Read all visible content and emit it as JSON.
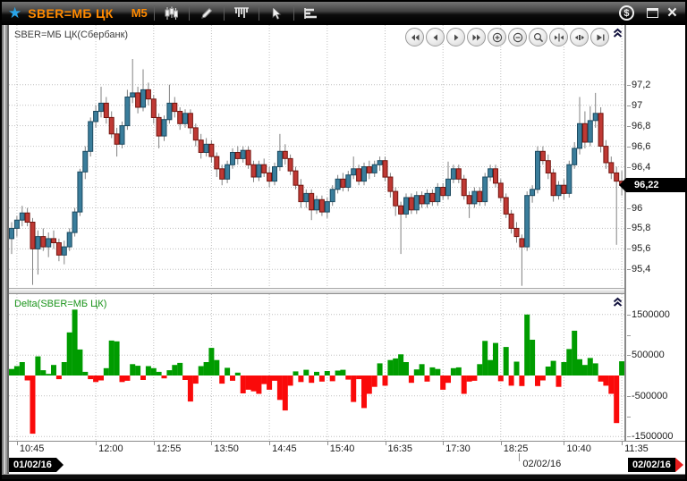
{
  "titlebar": {
    "title": "SBER=МБ ЦК",
    "timeframe": "М5",
    "star_color": "#2aa4e8",
    "tools": [
      "candle-chart-icon",
      "pencil-icon",
      "volume-profile-icon",
      "cursor-icon",
      "indicator-list-icon"
    ],
    "window_buttons": {
      "dollar_glyph": "$",
      "close_glyph": "×"
    }
  },
  "chart_panel": {
    "label": "SBER=МБ ЦК(Сбербанк)",
    "nav_buttons": [
      "scroll-left-fast",
      "scroll-left",
      "scroll-right",
      "scroll-right-fast",
      "zoom-in",
      "zoom-out",
      "zoom-area",
      "compress-horizontal",
      "expand-horizontal",
      "go-to-last"
    ],
    "last_price_label": "96,22"
  },
  "delta_panel": {
    "label": "Delta(SBER=МБ ЦК)"
  },
  "time_axis": {
    "date_left": "01/02/16",
    "date_mid": "02/02/16",
    "date_right": "02/02/16"
  },
  "colors": {
    "up_fill": "#3a7d9b",
    "up_border": "#1c4a60",
    "down_fill": "#bf3934",
    "down_border": "#73150f",
    "wick": "#828282",
    "grid": "#c0c0c0",
    "delta_up": "#009c00",
    "delta_down": "#fa0a0a",
    "accent_orange": "#ff8a00",
    "badge_bg": "#000000",
    "badge_arrow_red": "#e81c1c"
  },
  "chart_data": [
    {
      "type": "candlestick",
      "title": "SBER=МБ ЦК(Сбербанк)",
      "symbol": "SBER=МБ ЦК",
      "timeframe_minutes": 5,
      "ylim": [
        95.25,
        97.55
      ],
      "yticks": [
        {
          "v": 97.2,
          "label": "97,2"
        },
        {
          "v": 97.0,
          "label": "97"
        },
        {
          "v": 96.8,
          "label": "96,8"
        },
        {
          "v": 96.6,
          "label": "96,6"
        },
        {
          "v": 96.4,
          "label": "96,4"
        },
        {
          "v": 96.2,
          "label": "96,2"
        },
        {
          "v": 96.0,
          "label": "96"
        },
        {
          "v": 95.8,
          "label": "95,8"
        },
        {
          "v": 95.6,
          "label": "95,6"
        },
        {
          "v": 95.4,
          "label": "95,4"
        }
      ],
      "last_price": 96.22,
      "xticks": [
        {
          "label": "10:45",
          "index": 1
        },
        {
          "label": "12:00",
          "index": 16
        },
        {
          "label": "12:55",
          "index": 27
        },
        {
          "label": "13:50",
          "index": 38
        },
        {
          "label": "14:45",
          "index": 49
        },
        {
          "label": "15:40",
          "index": 60
        },
        {
          "label": "16:35",
          "index": 71
        },
        {
          "label": "17:30",
          "index": 82
        },
        {
          "label": "18:25",
          "index": 93
        },
        {
          "label": "10:40",
          "index": 105
        },
        {
          "label": "11:35",
          "index": 116
        }
      ],
      "day_separator_index": 97,
      "ohlc": [
        [
          95.7,
          95.86,
          95.55,
          95.8
        ],
        [
          95.8,
          95.92,
          95.72,
          95.88
        ],
        [
          95.88,
          96.02,
          95.82,
          95.95
        ],
        [
          95.95,
          96.0,
          95.82,
          95.86
        ],
        [
          95.86,
          95.9,
          95.25,
          95.6
        ],
        [
          95.6,
          95.78,
          95.35,
          95.72
        ],
        [
          95.72,
          95.8,
          95.58,
          95.62
        ],
        [
          95.62,
          95.76,
          95.52,
          95.7
        ],
        [
          95.7,
          95.78,
          95.6,
          95.66
        ],
        [
          95.66,
          95.7,
          95.48,
          95.54
        ],
        [
          95.54,
          95.68,
          95.45,
          95.62
        ],
        [
          95.62,
          95.8,
          95.58,
          95.76
        ],
        [
          95.76,
          96.0,
          95.72,
          95.96
        ],
        [
          95.96,
          96.38,
          95.92,
          96.35
        ],
        [
          96.35,
          96.6,
          96.28,
          96.55
        ],
        [
          96.55,
          96.88,
          96.5,
          96.84
        ],
        [
          96.84,
          97.0,
          96.78,
          96.94
        ],
        [
          96.94,
          97.18,
          96.88,
          97.02
        ],
        [
          97.02,
          97.08,
          96.82,
          96.88
        ],
        [
          96.88,
          96.94,
          96.68,
          96.72
        ],
        [
          96.72,
          96.78,
          96.5,
          96.62
        ],
        [
          96.62,
          96.84,
          96.58,
          96.8
        ],
        [
          96.8,
          97.15,
          96.76,
          97.08
        ],
        [
          97.08,
          97.45,
          97.02,
          97.12
        ],
        [
          97.12,
          97.18,
          96.92,
          96.98
        ],
        [
          96.98,
          97.35,
          96.94,
          97.15
        ],
        [
          97.15,
          97.22,
          97.0,
          97.06
        ],
        [
          97.06,
          97.1,
          96.82,
          96.88
        ],
        [
          96.88,
          96.92,
          96.58,
          96.7
        ],
        [
          96.7,
          96.9,
          96.65,
          96.86
        ],
        [
          96.86,
          97.2,
          96.82,
          97.02
        ],
        [
          97.02,
          97.08,
          96.88,
          96.94
        ],
        [
          96.94,
          96.98,
          96.76,
          96.82
        ],
        [
          96.82,
          96.96,
          96.78,
          96.92
        ],
        [
          96.92,
          96.96,
          96.72,
          96.78
        ],
        [
          96.78,
          96.82,
          96.6,
          96.66
        ],
        [
          96.66,
          96.72,
          96.48,
          96.54
        ],
        [
          96.54,
          96.68,
          96.5,
          96.62
        ],
        [
          96.62,
          96.66,
          96.44,
          96.5
        ],
        [
          96.5,
          96.54,
          96.3,
          96.38
        ],
        [
          96.38,
          96.42,
          96.22,
          96.28
        ],
        [
          96.28,
          96.46,
          96.24,
          96.42
        ],
        [
          96.42,
          96.58,
          96.38,
          96.54
        ],
        [
          96.54,
          96.6,
          96.42,
          96.48
        ],
        [
          96.48,
          96.6,
          96.44,
          96.56
        ],
        [
          96.56,
          96.6,
          96.38,
          96.42
        ],
        [
          96.42,
          96.46,
          96.25,
          96.3
        ],
        [
          96.3,
          96.46,
          96.26,
          96.42
        ],
        [
          96.42,
          96.48,
          96.3,
          96.34
        ],
        [
          96.34,
          96.4,
          96.2,
          96.26
        ],
        [
          96.26,
          96.44,
          96.22,
          96.4
        ],
        [
          96.4,
          96.72,
          96.36,
          96.55
        ],
        [
          96.55,
          96.62,
          96.42,
          96.48
        ],
        [
          96.48,
          96.52,
          96.32,
          96.36
        ],
        [
          96.36,
          96.4,
          96.18,
          96.22
        ],
        [
          96.22,
          96.28,
          96.0,
          96.06
        ],
        [
          96.06,
          96.18,
          96.0,
          96.14
        ],
        [
          96.14,
          96.18,
          95.88,
          95.98
        ],
        [
          95.98,
          96.12,
          95.94,
          96.08
        ],
        [
          96.08,
          96.12,
          95.92,
          95.96
        ],
        [
          95.96,
          96.1,
          95.9,
          96.06
        ],
        [
          96.06,
          96.22,
          96.02,
          96.18
        ],
        [
          96.18,
          96.32,
          96.14,
          96.28
        ],
        [
          96.28,
          96.34,
          96.16,
          96.2
        ],
        [
          96.2,
          96.36,
          96.16,
          96.32
        ],
        [
          96.32,
          96.5,
          96.28,
          96.38
        ],
        [
          96.38,
          96.42,
          96.22,
          96.26
        ],
        [
          96.26,
          96.44,
          96.22,
          96.4
        ],
        [
          96.4,
          96.46,
          96.28,
          96.34
        ],
        [
          96.34,
          96.46,
          96.3,
          96.42
        ],
        [
          96.42,
          96.5,
          96.36,
          96.46
        ],
        [
          96.46,
          96.5,
          96.26,
          96.3
        ],
        [
          96.3,
          96.34,
          96.1,
          96.16
        ],
        [
          96.16,
          96.2,
          95.92,
          96.02
        ],
        [
          96.02,
          96.06,
          95.55,
          95.94
        ],
        [
          95.94,
          96.14,
          95.9,
          96.1
        ],
        [
          96.1,
          96.14,
          95.94,
          95.98
        ],
        [
          95.98,
          96.16,
          95.94,
          96.12
        ],
        [
          96.12,
          96.16,
          96.0,
          96.04
        ],
        [
          96.04,
          96.18,
          96.0,
          96.14
        ],
        [
          96.14,
          96.18,
          96.02,
          96.06
        ],
        [
          96.06,
          96.24,
          96.02,
          96.2
        ],
        [
          96.2,
          96.24,
          96.08,
          96.12
        ],
        [
          96.12,
          96.45,
          96.08,
          96.28
        ],
        [
          96.28,
          96.42,
          96.24,
          96.38
        ],
        [
          96.38,
          96.42,
          96.24,
          96.28
        ],
        [
          96.28,
          96.32,
          96.08,
          96.12
        ],
        [
          96.12,
          96.16,
          95.9,
          96.04
        ],
        [
          96.04,
          96.2,
          96.0,
          96.16
        ],
        [
          96.16,
          96.2,
          96.02,
          96.06
        ],
        [
          96.06,
          96.34,
          96.02,
          96.3
        ],
        [
          96.3,
          96.42,
          96.26,
          96.38
        ],
        [
          96.38,
          96.42,
          96.2,
          96.24
        ],
        [
          96.24,
          96.28,
          96.06,
          96.1
        ],
        [
          96.1,
          96.14,
          95.9,
          95.94
        ],
        [
          95.94,
          95.98,
          95.75,
          95.8
        ],
        [
          95.8,
          95.86,
          95.66,
          95.72
        ],
        [
          95.7,
          95.74,
          95.24,
          95.62
        ],
        [
          95.62,
          96.16,
          95.58,
          96.12
        ],
        [
          96.12,
          96.22,
          96.05,
          96.18
        ],
        [
          96.18,
          96.6,
          96.14,
          96.55
        ],
        [
          96.55,
          96.6,
          96.42,
          96.46
        ],
        [
          96.46,
          96.52,
          96.28,
          96.34
        ],
        [
          96.34,
          96.38,
          96.06,
          96.12
        ],
        [
          96.12,
          96.26,
          96.08,
          96.22
        ],
        [
          96.22,
          96.28,
          96.08,
          96.14
        ],
        [
          96.14,
          96.46,
          96.1,
          96.42
        ],
        [
          96.42,
          96.64,
          96.38,
          96.58
        ],
        [
          96.58,
          97.08,
          96.52,
          96.82
        ],
        [
          96.82,
          96.94,
          96.58,
          96.64
        ],
        [
          96.64,
          96.99,
          96.6,
          96.85
        ],
        [
          96.85,
          97.12,
          96.78,
          96.92
        ],
        [
          96.92,
          96.98,
          96.54,
          96.6
        ],
        [
          96.6,
          96.66,
          96.38,
          96.44
        ],
        [
          96.44,
          96.5,
          96.28,
          96.34
        ],
        [
          96.34,
          96.4,
          95.64,
          96.26
        ],
        [
          96.26,
          96.36,
          96.12,
          96.22
        ]
      ]
    },
    {
      "type": "bar",
      "title": "Delta(SBER=МБ ЦК)",
      "ylim": [
        -1600000,
        1700000
      ],
      "yticks": [
        {
          "v": 1500000,
          "label": "1500000"
        },
        {
          "v": 500000,
          "label": "500000"
        },
        {
          "v": -500000,
          "label": "-500000"
        },
        {
          "v": -1500000,
          "label": "-1500000"
        }
      ],
      "minor_yticks": [
        1000000,
        -1000000
      ],
      "values": [
        160000,
        230000,
        330000,
        -120000,
        -1430000,
        470000,
        130000,
        40000,
        260000,
        -90000,
        330000,
        1060000,
        1620000,
        640000,
        90000,
        -90000,
        -160000,
        -120000,
        180000,
        860000,
        840000,
        -160000,
        -130000,
        280000,
        240000,
        -110000,
        230000,
        180000,
        90000,
        -70000,
        130000,
        260000,
        310000,
        -110000,
        -640000,
        -200000,
        230000,
        330000,
        680000,
        380000,
        -200000,
        190000,
        -130000,
        70000,
        -440000,
        -350000,
        -390000,
        -450000,
        -210000,
        -350000,
        -130000,
        -600000,
        -860000,
        -250000,
        100000,
        -160000,
        140000,
        -180000,
        90000,
        -150000,
        110000,
        -140000,
        120000,
        140000,
        -100000,
        -650000,
        -90000,
        -800000,
        -450000,
        -280000,
        300000,
        -250000,
        380000,
        420000,
        520000,
        330000,
        -180000,
        150000,
        280000,
        -150000,
        200000,
        160000,
        -350000,
        -180000,
        180000,
        200000,
        -450000,
        -150000,
        -130000,
        280000,
        850000,
        380000,
        800000,
        -140000,
        700000,
        -250000,
        340000,
        -260000,
        1500000,
        880000,
        -260000,
        -120000,
        220000,
        360000,
        -280000,
        330000,
        650000,
        1100000,
        400000,
        260000,
        430000,
        300000,
        -150000,
        -250000,
        -450000,
        -1170000,
        350000
      ]
    }
  ]
}
